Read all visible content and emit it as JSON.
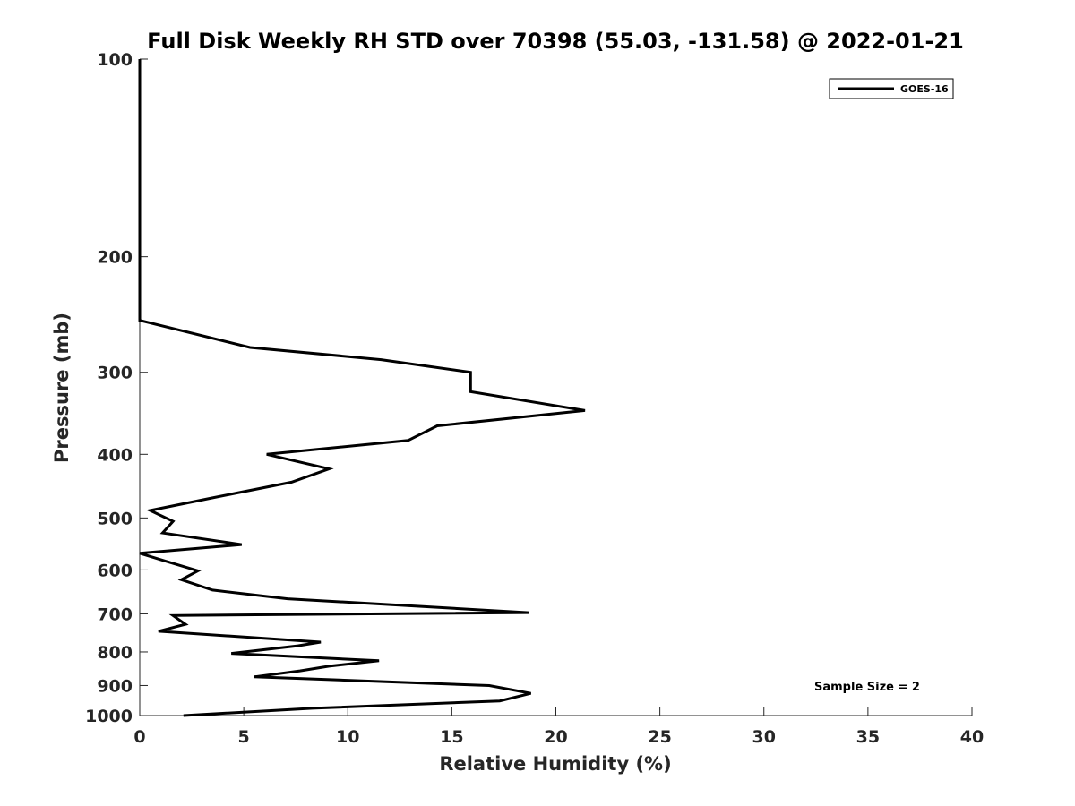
{
  "chart_data": {
    "type": "line",
    "title": "Full Disk Weekly RH STD over 70398 (55.03, -131.58) @ 2022-01-21",
    "xlabel": "Relative Humidity (%)",
    "ylabel": "Pressure (mb)",
    "xlim": [
      0,
      40
    ],
    "ylim": [
      100,
      1000
    ],
    "y_scale": "log",
    "y_reversed": true,
    "x_ticks": [
      "0",
      "5",
      "10",
      "15",
      "20",
      "25",
      "30",
      "35",
      "40"
    ],
    "y_ticks": [
      "100",
      "200",
      "300",
      "400",
      "500",
      "600",
      "700",
      "800",
      "900",
      "1000"
    ],
    "grid": false,
    "legend": {
      "position": "top-right",
      "entries": [
        "GOES-16"
      ]
    },
    "annotation": "Sample Size = 2",
    "line_color": "#000000",
    "series": [
      {
        "name": "GOES-16",
        "points": [
          [
            0,
            100
          ],
          [
            0,
            150
          ],
          [
            0,
            200
          ],
          [
            0,
            250
          ],
          [
            5.3,
            275
          ],
          [
            11.6,
            287
          ],
          [
            15.9,
            300
          ],
          [
            15.9,
            321
          ],
          [
            21.4,
            343
          ],
          [
            14.3,
            362
          ],
          [
            12.9,
            381
          ],
          [
            6.1,
            400
          ],
          [
            9.1,
            421
          ],
          [
            7.3,
            441
          ],
          [
            3.5,
            466
          ],
          [
            0.5,
            487
          ],
          [
            1.6,
            506
          ],
          [
            1.1,
            527
          ],
          [
            4.9,
            549
          ],
          [
            0,
            566
          ],
          [
            1.1,
            580
          ],
          [
            2.8,
            602
          ],
          [
            2.0,
            621
          ],
          [
            3.5,
            644
          ],
          [
            7.1,
            664
          ],
          [
            18.7,
            697
          ],
          [
            1.6,
            704
          ],
          [
            2.2,
            726
          ],
          [
            0.9,
            744
          ],
          [
            8.7,
            773
          ],
          [
            7.6,
            783
          ],
          [
            4.4,
            804
          ],
          [
            11.5,
            825
          ],
          [
            9.1,
            841
          ],
          [
            7.7,
            855
          ],
          [
            5.5,
            873
          ],
          [
            16.8,
            900
          ],
          [
            18.8,
            925
          ],
          [
            17.3,
            950
          ],
          [
            8.3,
            975
          ],
          [
            2.1,
            1000
          ]
        ]
      }
    ]
  }
}
